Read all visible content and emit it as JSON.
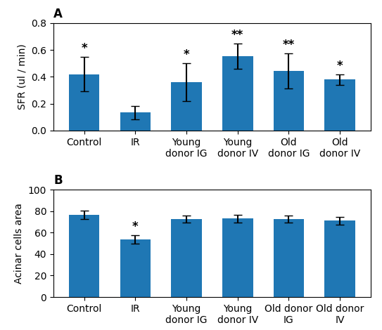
{
  "chart_data": [
    {
      "type": "bar",
      "title": "A",
      "categories": [
        "Control",
        "IR",
        "Young\ndonor IG",
        "Young\ndonor IV",
        "Old\ndonor IG",
        "Old\ndonor IV"
      ],
      "values": [
        0.42,
        0.135,
        0.36,
        0.555,
        0.445,
        0.38
      ],
      "errors": [
        0.13,
        0.05,
        0.14,
        0.095,
        0.13,
        0.04
      ],
      "annotations": [
        "*",
        null,
        "*",
        "**",
        "**",
        "*"
      ],
      "y_label": "SFR (ul / min)",
      "ylim": [
        0,
        0.8
      ],
      "yticks": [
        {
          "value": 0,
          "label": "0.0"
        },
        0.2,
        0.4,
        0.6,
        0.8
      ]
    },
    {
      "type": "bar",
      "title": "B",
      "categories": [
        "Control",
        "IR",
        "Young\ndonor IG",
        "Young\ndonor IV",
        "Old donor\nIG",
        "Old donor\nIV"
      ],
      "values": [
        76.5,
        53.5,
        72.5,
        73.0,
        72.5,
        71.0
      ],
      "errors": [
        4.0,
        4.0,
        3.5,
        3.5,
        3.5,
        3.5
      ],
      "annotations": [
        null,
        "*",
        null,
        null,
        null,
        null
      ],
      "y_label": "Acinar cells area",
      "ylim": [
        0,
        100
      ],
      "yticks": [
        0,
        20,
        40,
        60,
        80,
        100
      ]
    }
  ]
}
